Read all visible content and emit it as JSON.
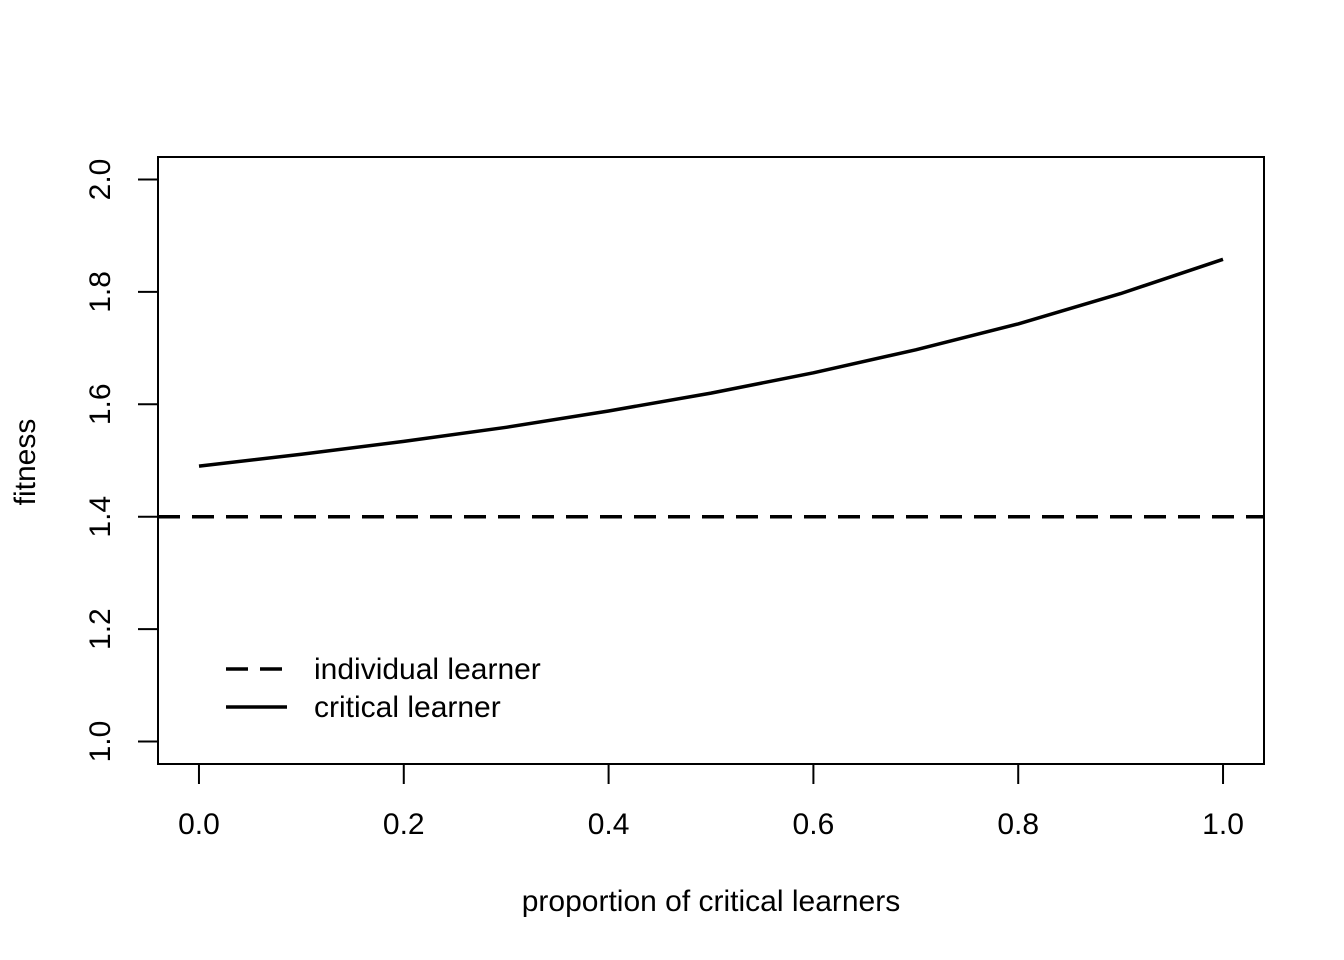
{
  "chart_data": {
    "type": "line",
    "title": "",
    "xlabel": "proportion of critical learners",
    "ylabel": "fitness",
    "xlim": [
      -0.04,
      1.04
    ],
    "ylim": [
      0.96,
      2.04
    ],
    "x_ticks": [
      0.0,
      0.2,
      0.4,
      0.6,
      0.8,
      1.0
    ],
    "x_tick_labels": [
      "0.0",
      "0.2",
      "0.4",
      "0.6",
      "0.8",
      "1.0"
    ],
    "y_ticks": [
      1.0,
      1.2,
      1.4,
      1.6,
      1.8,
      2.0
    ],
    "y_tick_labels": [
      "1.0",
      "1.2",
      "1.4",
      "1.6",
      "1.8",
      "2.0"
    ],
    "grid": false,
    "legend_position": "bottom-left",
    "series": [
      {
        "name": "individual learner",
        "style": "dashed",
        "color": "#000000",
        "x": [
          -0.04,
          1.04
        ],
        "y": [
          1.4,
          1.4
        ]
      },
      {
        "name": "critical learner",
        "style": "solid",
        "color": "#000000",
        "x": [
          0.0,
          0.1,
          0.2,
          0.3,
          0.4,
          0.5,
          0.6,
          0.7,
          0.8,
          0.9,
          1.0
        ],
        "y": [
          1.49,
          1.511,
          1.534,
          1.559,
          1.588,
          1.62,
          1.656,
          1.697,
          1.743,
          1.797,
          1.858
        ]
      }
    ]
  }
}
